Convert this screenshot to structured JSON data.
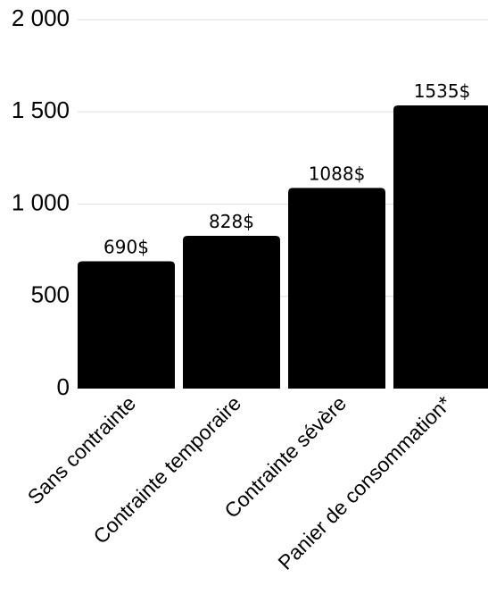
{
  "chart_data": {
    "type": "bar",
    "categories": [
      "Sans contrainte",
      "Contrainte temporaire",
      "Contrainte sévère",
      "Panier de consommation*"
    ],
    "values": [
      690,
      828,
      1088,
      1535
    ],
    "data_labels": [
      "690$",
      "828$",
      "1088$",
      "1535$"
    ],
    "y_ticks": [
      {
        "value": 0,
        "label": "0"
      },
      {
        "value": 500,
        "label": "500"
      },
      {
        "value": 1000,
        "label": "1 000"
      },
      {
        "value": 1500,
        "label": "1 500"
      },
      {
        "value": 2000,
        "label": "2 000"
      }
    ],
    "ylim": [
      0,
      2000
    ],
    "grid": true,
    "bar_color": "#000000",
    "grid_color": "#dddddd"
  }
}
